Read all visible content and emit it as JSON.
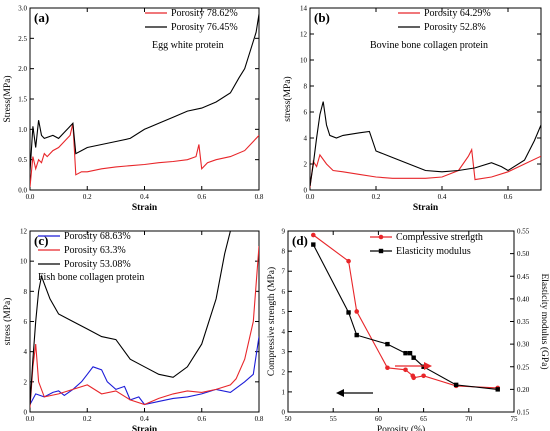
{
  "chart_data": [
    {
      "id": "a",
      "type": "line",
      "panel_label": "(a)",
      "description_label": "Egg white protein",
      "xlabel": "Strain",
      "ylabel": "Stress(MPa)",
      "xlim": [
        0.0,
        0.8
      ],
      "ylim": [
        0.0,
        3.0
      ],
      "xticks": [
        "0.0",
        "0.2",
        "0.4",
        "0.6",
        "0.8"
      ],
      "yticks": [
        "0.0",
        "0.5",
        "1.0",
        "1.5",
        "2.0",
        "2.5",
        "3.0"
      ],
      "legend_position": "top-right",
      "series": [
        {
          "name": "Porosity 78.62%",
          "color": "#e8262a",
          "x": [
            0,
            0.01,
            0.02,
            0.03,
            0.04,
            0.05,
            0.06,
            0.08,
            0.1,
            0.12,
            0.14,
            0.15,
            0.16,
            0.18,
            0.2,
            0.25,
            0.3,
            0.35,
            0.4,
            0.45,
            0.5,
            0.55,
            0.58,
            0.59,
            0.6,
            0.62,
            0.65,
            0.7,
            0.75,
            0.8
          ],
          "y": [
            0.05,
            0.55,
            0.35,
            0.5,
            0.45,
            0.6,
            0.55,
            0.65,
            0.7,
            0.8,
            0.9,
            1.1,
            0.25,
            0.3,
            0.3,
            0.35,
            0.38,
            0.4,
            0.42,
            0.45,
            0.47,
            0.5,
            0.55,
            0.75,
            0.35,
            0.45,
            0.5,
            0.55,
            0.65,
            0.9
          ]
        },
        {
          "name": "Porosity 76.45%",
          "color": "#000000",
          "x": [
            0,
            0.01,
            0.02,
            0.03,
            0.04,
            0.05,
            0.08,
            0.1,
            0.12,
            0.14,
            0.15,
            0.16,
            0.18,
            0.2,
            0.25,
            0.3,
            0.35,
            0.4,
            0.45,
            0.5,
            0.55,
            0.6,
            0.65,
            0.7,
            0.73,
            0.75,
            0.77,
            0.79,
            0.8
          ],
          "y": [
            0.3,
            1.05,
            0.7,
            1.15,
            0.9,
            0.85,
            0.9,
            0.85,
            0.95,
            1.05,
            1.1,
            0.6,
            0.65,
            0.7,
            0.75,
            0.8,
            0.85,
            1.0,
            1.1,
            1.2,
            1.3,
            1.35,
            1.45,
            1.6,
            1.85,
            2.0,
            2.3,
            2.6,
            2.9
          ]
        }
      ]
    },
    {
      "id": "b",
      "type": "line",
      "panel_label": "(b)",
      "description_label": "Bovine bone collagen protein",
      "xlabel": "Strain",
      "ylabel": "stress(MPa)",
      "xlim": [
        0.0,
        0.7
      ],
      "ylim": [
        0,
        14
      ],
      "xticks": [
        "0.0",
        "0.2",
        "0.4",
        "0.6"
      ],
      "yticks": [
        "0",
        "2",
        "4",
        "6",
        "8",
        "10",
        "12",
        "14"
      ],
      "legend_position": "top-right",
      "series": [
        {
          "name": "Porosity 64.29%",
          "color": "#e8262a",
          "x": [
            0,
            0.01,
            0.02,
            0.03,
            0.05,
            0.07,
            0.1,
            0.15,
            0.2,
            0.25,
            0.3,
            0.35,
            0.4,
            0.45,
            0.48,
            0.49,
            0.5,
            0.55,
            0.6,
            0.65,
            0.7
          ],
          "y": [
            0.2,
            2.2,
            1.8,
            2.7,
            2.0,
            1.5,
            1.4,
            1.2,
            1.0,
            0.9,
            0.9,
            0.9,
            1.0,
            1.5,
            2.6,
            3.1,
            0.8,
            1.0,
            1.4,
            2.0,
            2.6
          ]
        },
        {
          "name": "Porosity 52.8%",
          "color": "#000000",
          "x": [
            0,
            0.01,
            0.02,
            0.03,
            0.04,
            0.05,
            0.06,
            0.08,
            0.1,
            0.15,
            0.18,
            0.2,
            0.25,
            0.3,
            0.35,
            0.4,
            0.45,
            0.5,
            0.55,
            0.58,
            0.6,
            0.65,
            0.68,
            0.7
          ],
          "y": [
            0.3,
            2.0,
            4.0,
            5.8,
            6.8,
            5.0,
            4.2,
            4.0,
            4.2,
            4.4,
            4.5,
            3.0,
            2.5,
            2.0,
            1.5,
            1.4,
            1.5,
            1.7,
            2.1,
            1.8,
            1.5,
            2.3,
            3.8,
            5.0
          ]
        }
      ]
    },
    {
      "id": "c",
      "type": "line",
      "panel_label": "(c)",
      "description_label": "Fish bone collagen protein",
      "xlabel": "Strain",
      "ylabel": "stress (MPa)",
      "xlim": [
        0.0,
        0.8
      ],
      "ylim": [
        0,
        12
      ],
      "xticks": [
        "0.0",
        "0.2",
        "0.4",
        "0.6",
        "0.8"
      ],
      "yticks": [
        "0",
        "2",
        "4",
        "6",
        "8",
        "10",
        "12"
      ],
      "legend_position": "top-left",
      "series": [
        {
          "name": "Porosity 68.63%",
          "color": "#1c1cd8",
          "x": [
            0,
            0.02,
            0.05,
            0.08,
            0.1,
            0.12,
            0.15,
            0.18,
            0.2,
            0.22,
            0.25,
            0.27,
            0.3,
            0.33,
            0.35,
            0.38,
            0.4,
            0.45,
            0.5,
            0.55,
            0.6,
            0.65,
            0.7,
            0.75,
            0.78,
            0.8
          ],
          "y": [
            0.5,
            1.2,
            1.0,
            1.3,
            1.4,
            1.1,
            1.5,
            2.0,
            2.5,
            3.0,
            2.8,
            2.0,
            1.5,
            1.7,
            0.8,
            1.0,
            0.5,
            0.7,
            0.9,
            1.0,
            1.2,
            1.5,
            1.3,
            2.0,
            2.5,
            5.0
          ]
        },
        {
          "name": "Porosity 63.3%",
          "color": "#e8262a",
          "x": [
            0,
            0.01,
            0.02,
            0.03,
            0.05,
            0.1,
            0.15,
            0.2,
            0.25,
            0.3,
            0.35,
            0.4,
            0.45,
            0.5,
            0.55,
            0.6,
            0.65,
            0.7,
            0.72,
            0.75,
            0.78,
            0.8
          ],
          "y": [
            0.3,
            3.0,
            4.5,
            2.0,
            1.0,
            1.2,
            1.5,
            1.8,
            1.2,
            1.4,
            0.8,
            0.5,
            0.9,
            1.2,
            1.4,
            1.3,
            1.5,
            1.8,
            2.2,
            3.5,
            6.0,
            11.0
          ]
        },
        {
          "name": "Porosity 53.08%",
          "color": "#000000",
          "x": [
            0,
            0.01,
            0.02,
            0.03,
            0.04,
            0.05,
            0.07,
            0.1,
            0.15,
            0.2,
            0.25,
            0.3,
            0.35,
            0.4,
            0.45,
            0.5,
            0.55,
            0.6,
            0.65,
            0.68,
            0.7,
            0.71
          ],
          "y": [
            0.5,
            3.5,
            6.0,
            8.0,
            9.0,
            8.5,
            7.5,
            6.5,
            6.0,
            5.5,
            5.0,
            4.8,
            3.5,
            3.0,
            2.5,
            2.3,
            3.0,
            4.5,
            7.5,
            10.5,
            12.0,
            12.8
          ]
        }
      ]
    },
    {
      "id": "d",
      "type": "line",
      "panel_label": "(d)",
      "xlabel": "Porosity (%)",
      "ylabel": "Compressive strength (MPa)",
      "ylabel_right": "Elasticity modulus (GPa)",
      "xlim": [
        50,
        75
      ],
      "ylim": [
        0,
        9
      ],
      "ylim_right": [
        0.15,
        0.55
      ],
      "xticks": [
        "50",
        "55",
        "60",
        "65",
        "70",
        "75"
      ],
      "yticks": [
        "0",
        "1",
        "2",
        "3",
        "4",
        "5",
        "6",
        "7",
        "8",
        "9"
      ],
      "yticks_right": [
        "0.15",
        "0.20",
        "0.25",
        "0.30",
        "0.35",
        "0.40",
        "0.45",
        "0.50",
        "0.55"
      ],
      "legend_position": "top-right",
      "series": [
        {
          "name": "Compressive strength",
          "color": "#e8262a",
          "marker": "circle",
          "axis": "left",
          "x": [
            52.8,
            56.7,
            57.6,
            61.0,
            63.0,
            63.8,
            63.9,
            65.0,
            68.6,
            73.2
          ],
          "y": [
            8.8,
            7.5,
            5.0,
            2.2,
            2.1,
            1.8,
            1.7,
            1.8,
            1.3,
            1.2
          ]
        },
        {
          "name": "Elasticity modulus",
          "color": "#000000",
          "marker": "square",
          "axis": "right",
          "x": [
            52.8,
            56.7,
            57.6,
            61.0,
            63.0,
            63.5,
            63.9,
            65.0,
            68.6,
            73.2
          ],
          "y": [
            0.52,
            0.37,
            0.32,
            0.3,
            0.28,
            0.28,
            0.27,
            0.25,
            0.21,
            0.2
          ]
        }
      ]
    }
  ]
}
